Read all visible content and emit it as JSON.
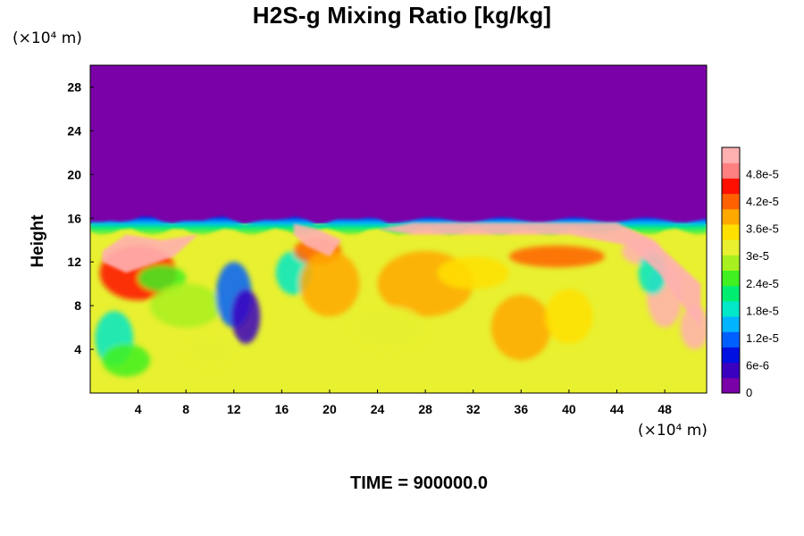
{
  "chart_data": {
    "type": "heatmap",
    "title": "H2S-g Mixing Ratio [kg/kg]",
    "ylabel": "Height",
    "x_unit_label": "(×10⁴ m)",
    "y_unit_label": "(×10⁴ m)",
    "xlim": [
      0,
      51.5
    ],
    "ylim": [
      0,
      30
    ],
    "x_ticks": [
      "4",
      "8",
      "12",
      "16",
      "20",
      "24",
      "28",
      "32",
      "36",
      "40",
      "44",
      "48"
    ],
    "y_ticks": [
      "4",
      "8",
      "12",
      "16",
      "20",
      "24",
      "28"
    ],
    "colorbar": {
      "min": 0,
      "max": 5.4e-05,
      "tick_labels": [
        "0",
        "6e-6",
        "1.2e-5",
        "1.8e-5",
        "2.4e-5",
        "3e-5",
        "3.6e-5",
        "4.2e-5",
        "4.8e-5"
      ],
      "colors": [
        "#7a00a8",
        "#3a00c0",
        "#0010e0",
        "#0060ff",
        "#00b4ff",
        "#00e8c8",
        "#00ee70",
        "#40f020",
        "#a8f020",
        "#e8f030",
        "#ffe000",
        "#ffa800",
        "#ff6000",
        "#ff1000",
        "#ff8080",
        "#ffb0b0"
      ]
    },
    "fields": {
      "upper_region_value": 0,
      "lower_region_value": 3.3e-05,
      "interface_height": 15.5
    }
  },
  "footer": {
    "time_label": "TIME = 900000.0"
  }
}
